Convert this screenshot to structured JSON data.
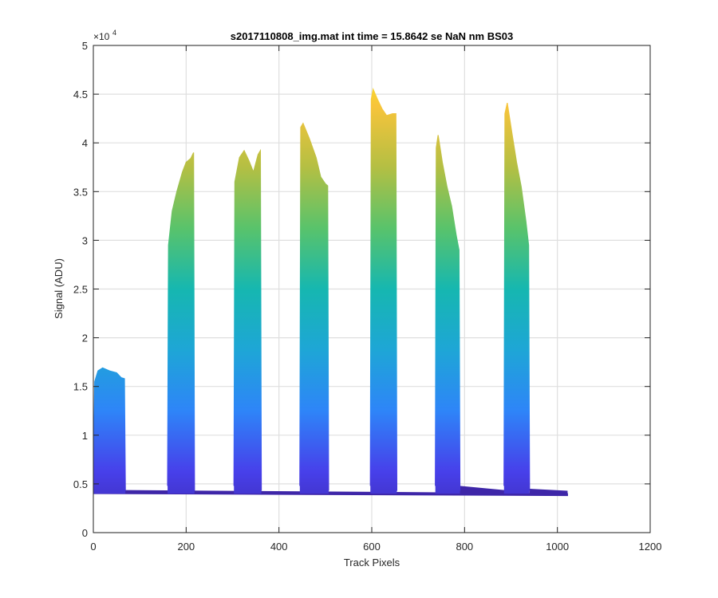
{
  "chart_data": {
    "type": "area",
    "title": "s2017110808_img.mat int time = 15.8642 se  NaN nm BS03",
    "xlabel": "Track Pixels",
    "ylabel": "Signal (ADU)",
    "xlim": [
      0,
      1200
    ],
    "ylim": [
      0,
      50000
    ],
    "x_ticks": [
      "0",
      "200",
      "400",
      "600",
      "800",
      "1000",
      "1200"
    ],
    "y_ticks": [
      "0",
      "0.5",
      "1",
      "1.5",
      "2",
      "2.5",
      "3",
      "3.5",
      "4",
      "4.5",
      "5"
    ],
    "y_exponent": {
      "base": "×10",
      "power": "4"
    },
    "grid": true,
    "colormap": [
      "#3e26a8",
      "#4740ea",
      "#2e85f8",
      "#1ea6d6",
      "#16b7b0",
      "#59c36b",
      "#b4bf43",
      "#f7c43b",
      "#f9fb14"
    ],
    "baseline": 4200,
    "peaks": [
      {
        "x": [
          0,
          3,
          10,
          20,
          35,
          50,
          60,
          67,
          69
        ],
        "y": [
          5500,
          15500,
          16600,
          16900,
          16600,
          16400,
          15900,
          15800,
          4300
        ]
      },
      {
        "x": [
          160,
          162,
          170,
          180,
          192,
          200,
          210,
          216,
          218
        ],
        "y": [
          4800,
          29500,
          33000,
          35000,
          37000,
          38000,
          38400,
          39000,
          4300
        ]
      },
      {
        "x": [
          303,
          305,
          315,
          325,
          335,
          345,
          355,
          360,
          362
        ],
        "y": [
          4800,
          36000,
          38500,
          39200,
          38200,
          37000,
          38800,
          39200,
          4300
        ]
      },
      {
        "x": [
          445,
          447,
          452,
          465,
          480,
          490,
          500,
          505,
          507
        ],
        "y": [
          4800,
          41600,
          42000,
          40500,
          38500,
          36500,
          35800,
          35600,
          4300
        ]
      },
      {
        "x": [
          597,
          599,
          603,
          612,
          622,
          632,
          645,
          652,
          654
        ],
        "y": [
          4800,
          44500,
          45500,
          44500,
          43500,
          42800,
          43000,
          43000,
          4300
        ]
      },
      {
        "x": [
          737,
          739,
          743,
          752,
          762,
          772,
          782,
          788,
          790
        ],
        "y": [
          4800,
          39500,
          40800,
          38000,
          35500,
          33500,
          30500,
          29000,
          4300
        ]
      },
      {
        "x": [
          885,
          887,
          892,
          902,
          912,
          922,
          932,
          938,
          940
        ],
        "y": [
          4800,
          43000,
          44100,
          41000,
          38000,
          35500,
          32000,
          29500,
          4300
        ]
      }
    ]
  }
}
